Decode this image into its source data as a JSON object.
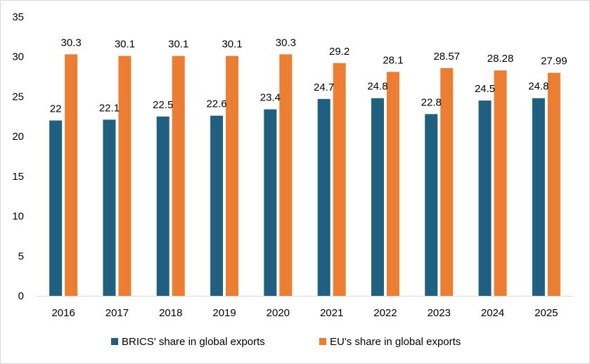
{
  "chart_data": {
    "type": "bar",
    "categories": [
      "2016",
      "2017",
      "2018",
      "2019",
      "2020",
      "2021",
      "2022",
      "2023",
      "2024",
      "2025"
    ],
    "series": [
      {
        "name": "BRICS' share in global exports",
        "color": "#1f5f7f",
        "values": [
          22,
          22.1,
          22.5,
          22.6,
          23.4,
          24.7,
          24.8,
          22.8,
          24.5,
          24.8
        ],
        "labels": [
          "22",
          "22.1",
          "22.5",
          "22.6",
          "23.4",
          "24.7",
          "24.8",
          "22.8",
          "24.5",
          "24.8"
        ]
      },
      {
        "name": "EU's share in global exports",
        "color": "#ed7d31",
        "values": [
          30.3,
          30.1,
          30.1,
          30.1,
          30.3,
          29.2,
          28.1,
          28.57,
          28.28,
          27.99
        ],
        "labels": [
          "30.3",
          "30.1",
          "30.1",
          "30.1",
          "30.3",
          "29.2",
          "28.1",
          "28.57",
          "28.28",
          "27.99"
        ]
      }
    ],
    "ylim": [
      0,
      35
    ],
    "yticks": [
      "0",
      "5",
      "10",
      "15",
      "20",
      "25",
      "30",
      "35"
    ],
    "grid": false,
    "legend": "bottom"
  }
}
